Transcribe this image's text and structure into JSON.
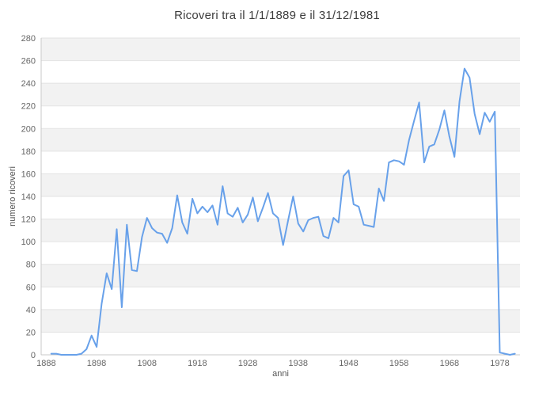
{
  "page": {
    "background": "#ffffff"
  },
  "chart_data": {
    "type": "line",
    "title": "Ricoveri tra il 1/1/1889 e il 31/12/1981",
    "xlabel": "anni",
    "ylabel": "numero ricoveri",
    "xlim": [
      1887,
      1982
    ],
    "ylim": [
      0,
      280
    ],
    "x_ticks": [
      1888,
      1898,
      1908,
      1918,
      1928,
      1938,
      1948,
      1958,
      1968,
      1978
    ],
    "y_ticks": [
      0,
      20,
      40,
      60,
      80,
      100,
      120,
      140,
      160,
      180,
      200,
      220,
      240,
      260,
      280
    ],
    "grid": "horizontal-only",
    "legend": "none",
    "series": [
      {
        "name": "numero ricoveri",
        "color": "#68a1ea",
        "start_year": 1889,
        "end_year": 1981,
        "values": [
          1,
          1,
          0,
          0,
          0,
          0,
          1,
          5,
          17,
          7,
          45,
          72,
          58,
          111,
          42,
          115,
          75,
          74,
          104,
          121,
          112,
          108,
          107,
          99,
          112,
          141,
          117,
          107,
          138,
          125,
          131,
          126,
          132,
          115,
          149,
          125,
          122,
          130,
          117,
          124,
          139,
          118,
          130,
          143,
          125,
          121,
          97,
          119,
          140,
          116,
          109,
          119,
          121,
          122,
          105,
          103,
          121,
          117,
          158,
          163,
          133,
          131,
          115,
          114,
          113,
          147,
          136,
          170,
          172,
          171,
          168,
          190,
          207,
          223,
          170,
          184,
          186,
          199,
          216,
          193,
          175,
          224,
          253,
          245,
          213,
          195,
          214,
          206,
          215,
          2,
          1,
          0,
          1
        ]
      }
    ]
  },
  "colors": {
    "line": "#68a1ea",
    "band_fill": "#f2f2f2",
    "gridline": "#e3e3e3",
    "axis_line": "#c9c9c9",
    "tick_text": "#666666",
    "axis_label_text": "#555555",
    "title_text": "#3d3d3d"
  }
}
